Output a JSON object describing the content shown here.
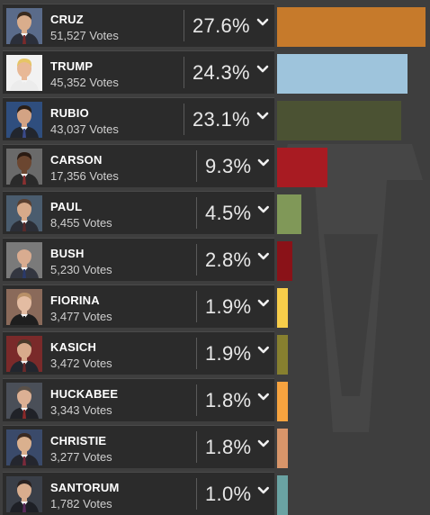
{
  "candidates": [
    {
      "name": "CRUZ",
      "votes": "51,527 Votes",
      "percent": "27.6%",
      "share": 27.6,
      "color": "#c67a2b",
      "photo": {
        "bg": "#5a6b8a",
        "skin": "#d9ad8c",
        "hair": "#3a2a1e",
        "suit": "#2b2f3a",
        "tie": "#7a2a2a"
      }
    },
    {
      "name": "TRUMP",
      "votes": "45,352 Votes",
      "percent": "24.3%",
      "share": 24.3,
      "color": "#9ec4dc",
      "photo": {
        "bg": "#f2f2f2",
        "skin": "#e8b896",
        "hair": "#e6c566",
        "suit": "#ececec",
        "tie": "#ececec"
      }
    },
    {
      "name": "RUBIO",
      "votes": "43,037 Votes",
      "percent": "23.1%",
      "share": 23.1,
      "color": "#4b5233",
      "photo": {
        "bg": "#2f4e7e",
        "skin": "#d3a384",
        "hair": "#2a1e16",
        "suit": "#22262e",
        "tie": "#3a4a8a"
      }
    },
    {
      "name": "CARSON",
      "votes": "17,356 Votes",
      "percent": "9.3%",
      "share": 9.3,
      "color": "#a81b22",
      "photo": {
        "bg": "#6a6a6a",
        "skin": "#6b4630",
        "hair": "#2a1a12",
        "suit": "#2a2a2a",
        "tie": "#8a3030"
      }
    },
    {
      "name": "PAUL",
      "votes": "8,455 Votes",
      "percent": "4.5%",
      "share": 4.5,
      "color": "#809858",
      "photo": {
        "bg": "#4a5c6e",
        "skin": "#d7aa8a",
        "hair": "#5a4030",
        "suit": "#2b2e36",
        "tie": "#5a2a2a"
      }
    },
    {
      "name": "BUSH",
      "votes": "5,230 Votes",
      "percent": "2.8%",
      "share": 2.8,
      "color": "#8a1218",
      "photo": {
        "bg": "#7a7a7a",
        "skin": "#d9ac90",
        "hair": "#7a7a7a",
        "suit": "#333640",
        "tie": "#2a3a6a"
      }
    },
    {
      "name": "FIORINA",
      "votes": "3,477 Votes",
      "percent": "1.9%",
      "share": 1.9,
      "color": "#f7cd4a",
      "photo": {
        "bg": "#8a6a5a",
        "skin": "#e3bca2",
        "hair": "#b89068",
        "suit": "#1e1e1e",
        "tie": "#1e1e1e"
      }
    },
    {
      "name": "KASICH",
      "votes": "3,472 Votes",
      "percent": "1.9%",
      "share": 1.9,
      "color": "#87802f",
      "photo": {
        "bg": "#7a2a2a",
        "skin": "#d8ab8c",
        "hair": "#4a3a2a",
        "suit": "#22262e",
        "tie": "#6a2a2a"
      }
    },
    {
      "name": "HUCKABEE",
      "votes": "3,343 Votes",
      "percent": "1.8%",
      "share": 1.8,
      "color": "#f7a33f",
      "photo": {
        "bg": "#4a4f58",
        "skin": "#dcb094",
        "hair": "#5a5048",
        "suit": "#202228",
        "tie": "#8a2a2a"
      }
    },
    {
      "name": "CHRISTIE",
      "votes": "3,277 Votes",
      "percent": "1.8%",
      "share": 1.8,
      "color": "#d8956a",
      "photo": {
        "bg": "#3a4a6a",
        "skin": "#dab08e",
        "hair": "#3a2a22",
        "suit": "#24262e",
        "tie": "#7a2a3a"
      }
    },
    {
      "name": "SANTORUM",
      "votes": "1,782 Votes",
      "percent": "1.0%",
      "share": 1.0,
      "color": "#6aa3a3",
      "photo": {
        "bg": "#3a3f48",
        "skin": "#d8ad8e",
        "hair": "#2a2220",
        "suit": "#1e2026",
        "tie": "#5a2a5a"
      }
    }
  ]
}
